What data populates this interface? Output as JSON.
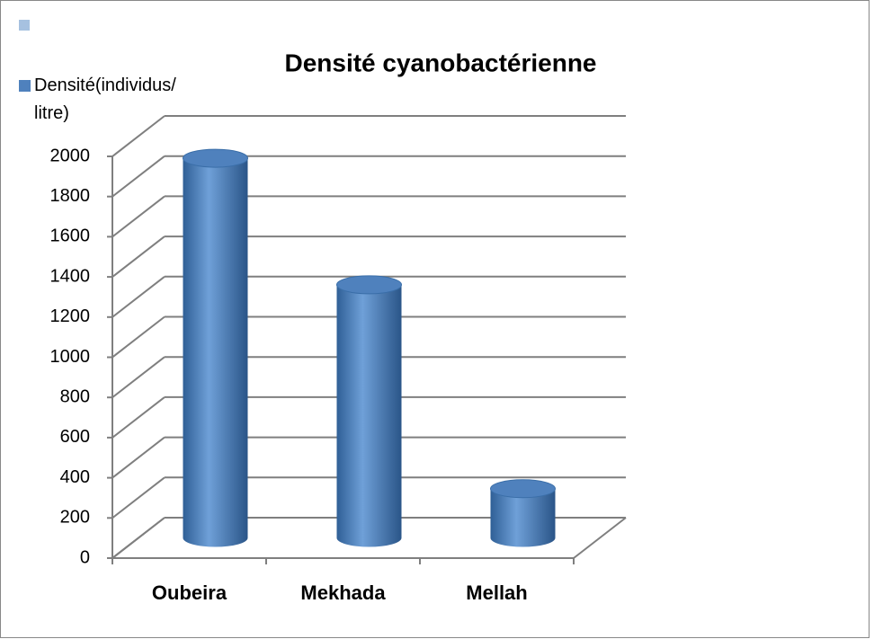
{
  "chart_data": {
    "type": "bar3d",
    "title": "Densité cyanobactérienne",
    "categories": [
      "Oubeira",
      "Mekhada",
      "Mellah"
    ],
    "series": [
      {
        "name": "Densité(individus/ litre)",
        "color": "#4f81bd",
        "values": [
          1890,
          1260,
          245
        ]
      }
    ],
    "ylim": [
      0,
      2000
    ],
    "yticks": [
      0,
      200,
      400,
      600,
      800,
      1000,
      1200,
      1400,
      1600,
      1800,
      2000
    ],
    "grid": true
  }
}
